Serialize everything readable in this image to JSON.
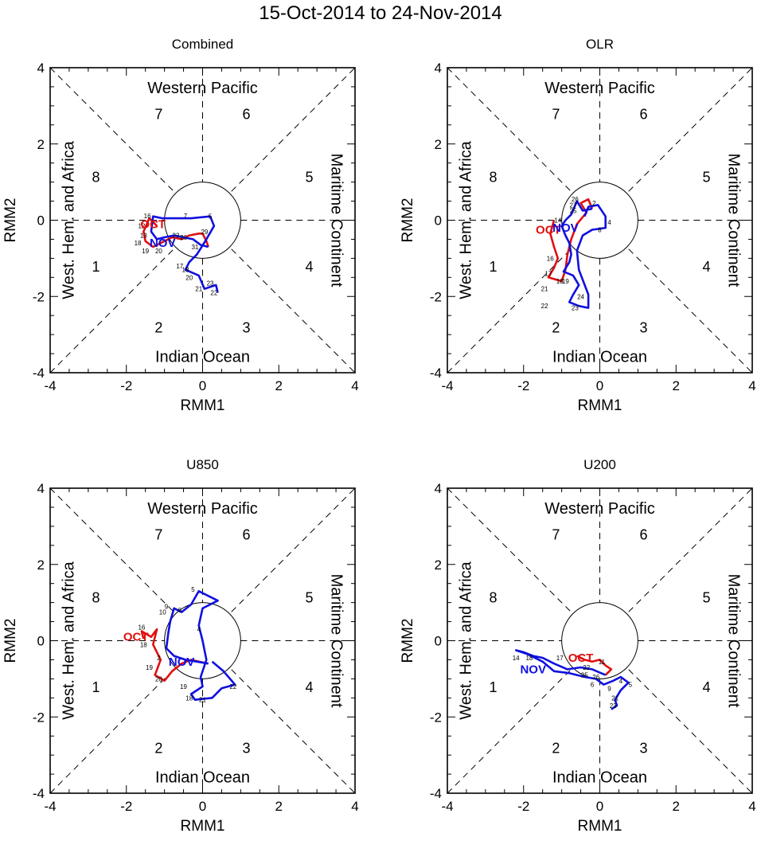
{
  "title": "15-Oct-2014 to 24-Nov-2014",
  "axis": {
    "xlabel": "RMM1",
    "ylabel": "RMM2",
    "xlim": [
      -4,
      4
    ],
    "ylim": [
      -4,
      4
    ],
    "ticks": [
      -4,
      -2,
      0,
      2,
      4
    ]
  },
  "regions": {
    "top": "Western Pacific",
    "bottom": "Indian Ocean",
    "left": "West. Hem. and Africa",
    "right": "Maritime Continent"
  },
  "phases": [
    {
      "label": "1",
      "x": -2.8,
      "y": -1.2
    },
    {
      "label": "2",
      "x": -1.15,
      "y": -2.8
    },
    {
      "label": "3",
      "x": 1.15,
      "y": -2.8
    },
    {
      "label": "4",
      "x": 2.8,
      "y": -1.2
    },
    {
      "label": "5",
      "x": 2.8,
      "y": 1.15
    },
    {
      "label": "6",
      "x": 1.15,
      "y": 2.8
    },
    {
      "label": "7",
      "x": -1.15,
      "y": 2.8
    },
    {
      "label": "8",
      "x": -2.8,
      "y": 1.15
    }
  ],
  "colors": {
    "oct": "#e01010",
    "nov": "#1010e0",
    "axes": "#000000"
  },
  "chart_data": [
    {
      "type": "line",
      "title": "Combined",
      "month_labels": [
        {
          "text": "OCT",
          "x": -1.3,
          "y": -0.1,
          "color": "#e01010"
        },
        {
          "text": "NOV",
          "x": -1.05,
          "y": -0.6,
          "color": "#1010e0"
        }
      ],
      "series": [
        {
          "name": "October",
          "color": "#e01010",
          "points": [
            [
              -1.2,
              -0.15
            ],
            [
              -1.4,
              0.05
            ],
            [
              -1.55,
              -0.3
            ],
            [
              -1.5,
              -0.55
            ],
            [
              -1.3,
              -0.7
            ],
            [
              -1.0,
              -0.55
            ],
            [
              -0.8,
              -0.45
            ],
            [
              -0.55,
              -0.5
            ],
            [
              -0.35,
              -0.4
            ],
            [
              -0.1,
              -0.35
            ],
            [
              0.0,
              -0.35
            ],
            [
              0.1,
              -0.55
            ],
            [
              0.15,
              -0.7
            ]
          ]
        },
        {
          "name": "November",
          "color": "#1010e0",
          "points": [
            [
              0.15,
              -0.7
            ],
            [
              -0.05,
              -0.65
            ],
            [
              -0.25,
              -0.5
            ],
            [
              -0.5,
              -0.45
            ],
            [
              -0.75,
              -0.4
            ],
            [
              -1.0,
              -0.45
            ],
            [
              -1.2,
              -0.5
            ],
            [
              -1.35,
              -0.3
            ],
            [
              -1.3,
              0.1
            ],
            [
              -1.05,
              0.05
            ],
            [
              -0.7,
              0.05
            ],
            [
              -0.3,
              0.05
            ],
            [
              0.2,
              0.1
            ],
            [
              0.3,
              -0.15
            ],
            [
              0.1,
              -0.5
            ],
            [
              -0.15,
              -0.9
            ],
            [
              -0.35,
              -1.1
            ],
            [
              -0.45,
              -1.3
            ],
            [
              -0.1,
              -1.45
            ],
            [
              0.05,
              -1.8
            ],
            [
              0.35,
              -1.7
            ],
            [
              0.4,
              -1.9
            ]
          ]
        }
      ],
      "day_labels": [
        {
          "t": "16",
          "x": -1.45,
          "y": 0.12
        },
        {
          "t": "12",
          "x": -1.6,
          "y": -0.15
        },
        {
          "t": "13",
          "x": -1.55,
          "y": -0.4
        },
        {
          "t": "18",
          "x": -1.7,
          "y": -0.6
        },
        {
          "t": "19",
          "x": -1.5,
          "y": -0.8
        },
        {
          "t": "20",
          "x": -1.15,
          "y": -0.8
        },
        {
          "t": "23",
          "x": -0.7,
          "y": -0.4
        },
        {
          "t": "26",
          "x": -0.5,
          "y": -0.45
        },
        {
          "t": "29",
          "x": 0.05,
          "y": -0.3
        },
        {
          "t": "31",
          "x": -0.2,
          "y": -0.7
        },
        {
          "t": "7",
          "x": -0.45,
          "y": 0.12
        },
        {
          "t": "5",
          "x": 0.2,
          "y": 0.1
        },
        {
          "t": "17",
          "x": -0.6,
          "y": -1.2
        },
        {
          "t": "18",
          "x": -0.45,
          "y": -1.3
        },
        {
          "t": "20",
          "x": -0.35,
          "y": -1.5
        },
        {
          "t": "21",
          "x": -0.1,
          "y": -1.8
        },
        {
          "t": "23",
          "x": 0.2,
          "y": -1.65
        },
        {
          "t": "22",
          "x": 0.3,
          "y": -1.9
        }
      ]
    },
    {
      "type": "line",
      "title": "OLR",
      "month_labels": [
        {
          "text": "OCT",
          "x": -1.35,
          "y": -0.25,
          "color": "#e01010"
        },
        {
          "text": "NOV",
          "x": -0.9,
          "y": -0.2,
          "color": "#1010e0"
        }
      ],
      "series": [
        {
          "name": "October",
          "color": "#e01010",
          "points": [
            [
              -1.2,
              0.0
            ],
            [
              -1.3,
              -0.35
            ],
            [
              -1.2,
              -0.7
            ],
            [
              -1.1,
              -1.0
            ],
            [
              -1.2,
              -1.25
            ],
            [
              -1.35,
              -1.5
            ],
            [
              -1.0,
              -1.6
            ],
            [
              -0.9,
              -1.3
            ],
            [
              -0.85,
              -0.9
            ],
            [
              -0.75,
              -0.5
            ],
            [
              -0.6,
              -0.1
            ],
            [
              -0.35,
              0.2
            ],
            [
              -0.5,
              0.45
            ],
            [
              -0.3,
              0.55
            ],
            [
              -0.2,
              0.3
            ]
          ]
        },
        {
          "name": "November",
          "color": "#1010e0",
          "points": [
            [
              -0.2,
              0.3
            ],
            [
              -0.45,
              0.25
            ],
            [
              -0.6,
              0.5
            ],
            [
              -0.75,
              0.15
            ],
            [
              -0.9,
              0.0
            ],
            [
              -1.0,
              -0.15
            ],
            [
              -0.9,
              -0.4
            ],
            [
              -0.8,
              -0.6
            ],
            [
              -0.75,
              -0.9
            ],
            [
              -0.8,
              -1.1
            ],
            [
              -0.95,
              -1.35
            ],
            [
              -0.7,
              -1.45
            ],
            [
              -0.55,
              -1.7
            ],
            [
              -0.7,
              -1.95
            ],
            [
              -0.8,
              -2.15
            ],
            [
              -0.55,
              -2.25
            ],
            [
              -0.3,
              -2.3
            ],
            [
              -0.3,
              -1.95
            ],
            [
              -0.55,
              -1.3
            ],
            [
              -0.6,
              -0.8
            ],
            [
              -0.45,
              -0.4
            ],
            [
              -0.2,
              -0.25
            ],
            [
              0.15,
              -0.2
            ],
            [
              0.15,
              0.1
            ],
            [
              -0.05,
              0.4
            ],
            [
              -0.3,
              0.35
            ],
            [
              -0.4,
              0.1
            ]
          ]
        }
      ],
      "day_labels": [
        {
          "t": "26",
          "x": -0.65,
          "y": 0.55
        },
        {
          "t": "27",
          "x": -0.7,
          "y": 0.4
        },
        {
          "t": "25",
          "x": -0.7,
          "y": 0.25
        },
        {
          "t": "14",
          "x": -1.1,
          "y": 0.0
        },
        {
          "t": "16",
          "x": -1.3,
          "y": -1.0
        },
        {
          "t": "17",
          "x": -1.35,
          "y": -1.4
        },
        {
          "t": "18",
          "x": -1.05,
          "y": -1.6
        },
        {
          "t": "19",
          "x": -0.9,
          "y": -1.6
        },
        {
          "t": "21",
          "x": -1.45,
          "y": -1.8
        },
        {
          "t": "22",
          "x": -1.45,
          "y": -2.25
        },
        {
          "t": "23",
          "x": -0.65,
          "y": -2.3
        },
        {
          "t": "24",
          "x": -0.5,
          "y": -2.0
        },
        {
          "t": "2",
          "x": -0.15,
          "y": 0.45
        },
        {
          "t": "8",
          "x": 0.0,
          "y": -0.25
        },
        {
          "t": "4",
          "x": 0.25,
          "y": -0.05
        }
      ]
    },
    {
      "type": "line",
      "title": "U850",
      "month_labels": [
        {
          "text": "OCT",
          "x": -1.75,
          "y": 0.1,
          "color": "#e01010"
        },
        {
          "text": "NOV",
          "x": -0.55,
          "y": -0.55,
          "color": "#1010e0"
        }
      ],
      "series": [
        {
          "name": "October",
          "color": "#e01010",
          "points": [
            [
              -1.55,
              0.05
            ],
            [
              -1.6,
              0.25
            ],
            [
              -1.35,
              0.1
            ],
            [
              -1.2,
              0.3
            ],
            [
              -1.3,
              -0.1
            ],
            [
              -1.1,
              -0.5
            ],
            [
              -1.25,
              -0.9
            ],
            [
              -1.0,
              -1.05
            ],
            [
              -0.8,
              -0.8
            ],
            [
              -0.55,
              -0.6
            ],
            [
              -0.3,
              -0.5
            ],
            [
              -0.1,
              -0.55
            ],
            [
              0.15,
              -0.6
            ]
          ]
        },
        {
          "name": "November",
          "color": "#1010e0",
          "points": [
            [
              0.15,
              -0.6
            ],
            [
              -0.15,
              -0.55
            ],
            [
              -0.45,
              -0.5
            ],
            [
              -0.75,
              -0.4
            ],
            [
              -0.95,
              -0.2
            ],
            [
              -0.9,
              0.2
            ],
            [
              -0.85,
              0.5
            ],
            [
              -0.75,
              0.85
            ],
            [
              -0.55,
              0.75
            ],
            [
              -0.3,
              0.95
            ],
            [
              -0.1,
              1.3
            ],
            [
              0.4,
              1.05
            ],
            [
              0.0,
              0.85
            ],
            [
              -0.1,
              0.4
            ],
            [
              0.0,
              0.0
            ],
            [
              0.1,
              -0.5
            ],
            [
              -0.05,
              -0.95
            ],
            [
              0.0,
              -1.2
            ],
            [
              -0.3,
              -1.4
            ],
            [
              -0.2,
              -1.55
            ],
            [
              0.25,
              -1.5
            ],
            [
              0.5,
              -1.25
            ],
            [
              0.85,
              -1.15
            ],
            [
              0.55,
              -0.8
            ],
            [
              0.25,
              -0.55
            ]
          ]
        }
      ],
      "day_labels": [
        {
          "t": "16",
          "x": -1.6,
          "y": 0.35
        },
        {
          "t": "18",
          "x": -1.55,
          "y": -0.1
        },
        {
          "t": "19",
          "x": -1.4,
          "y": -0.7
        },
        {
          "t": "20",
          "x": -1.15,
          "y": -1.0
        },
        {
          "t": "2",
          "x": -1.15,
          "y": -0.45
        },
        {
          "t": "10",
          "x": -1.05,
          "y": 0.75
        },
        {
          "t": "9",
          "x": -0.95,
          "y": 0.9
        },
        {
          "t": "5",
          "x": -0.25,
          "y": 1.35
        },
        {
          "t": "6",
          "x": -0.6,
          "y": 0.8
        },
        {
          "t": "4",
          "x": -0.1,
          "y": 0.3
        },
        {
          "t": "19",
          "x": -0.5,
          "y": -1.2
        },
        {
          "t": "18",
          "x": -0.35,
          "y": -1.5
        },
        {
          "t": "21",
          "x": 0.0,
          "y": -1.55
        },
        {
          "t": "22",
          "x": 0.8,
          "y": -1.2
        }
      ]
    },
    {
      "type": "line",
      "title": "U200",
      "month_labels": [
        {
          "text": "OCT",
          "x": -0.5,
          "y": -0.45,
          "color": "#e01010"
        },
        {
          "text": "NOV",
          "x": -1.75,
          "y": -0.75,
          "color": "#1010e0"
        }
      ],
      "series": [
        {
          "name": "October",
          "color": "#e01010",
          "points": [
            [
              -0.6,
              -0.4
            ],
            [
              -0.4,
              -0.5
            ],
            [
              -0.2,
              -0.55
            ],
            [
              0.0,
              -0.5
            ],
            [
              0.15,
              -0.65
            ],
            [
              0.3,
              -0.75
            ],
            [
              0.15,
              -0.9
            ]
          ]
        },
        {
          "name": "November",
          "color": "#1010e0",
          "points": [
            [
              0.15,
              -0.9
            ],
            [
              -0.2,
              -0.75
            ],
            [
              -0.5,
              -0.7
            ],
            [
              -0.85,
              -0.75
            ],
            [
              -1.2,
              -0.6
            ],
            [
              -1.5,
              -0.45
            ],
            [
              -1.75,
              -0.4
            ],
            [
              -2.0,
              -0.3
            ],
            [
              -2.2,
              -0.25
            ],
            [
              -1.9,
              -0.35
            ],
            [
              -1.5,
              -0.55
            ],
            [
              -1.2,
              -0.8
            ],
            [
              -0.8,
              -0.85
            ],
            [
              -0.4,
              -0.95
            ],
            [
              -0.1,
              -1.0
            ],
            [
              0.1,
              -1.15
            ],
            [
              0.35,
              -1.05
            ],
            [
              0.55,
              -0.95
            ],
            [
              0.75,
              -1.1
            ],
            [
              0.55,
              -1.3
            ],
            [
              0.4,
              -1.55
            ],
            [
              0.45,
              -1.7
            ],
            [
              0.3,
              -1.8
            ]
          ]
        }
      ],
      "day_labels": [
        {
          "t": "14",
          "x": -2.2,
          "y": -0.45
        },
        {
          "t": "18",
          "x": -1.85,
          "y": -0.45
        },
        {
          "t": "17",
          "x": -1.05,
          "y": -0.45
        },
        {
          "t": "11",
          "x": 0.05,
          "y": -0.55
        },
        {
          "t": "22",
          "x": -0.35,
          "y": -0.7
        },
        {
          "t": "26",
          "x": -0.1,
          "y": -0.95
        },
        {
          "t": "25",
          "x": -0.4,
          "y": -0.9
        },
        {
          "t": "4",
          "x": 0.55,
          "y": -1.05
        },
        {
          "t": "5",
          "x": 0.8,
          "y": -1.15
        },
        {
          "t": "9",
          "x": 0.25,
          "y": -1.25
        },
        {
          "t": "6",
          "x": -0.2,
          "y": -1.15
        },
        {
          "t": "21",
          "x": 0.4,
          "y": -1.5
        },
        {
          "t": "23",
          "x": 0.35,
          "y": -1.7
        }
      ]
    }
  ]
}
